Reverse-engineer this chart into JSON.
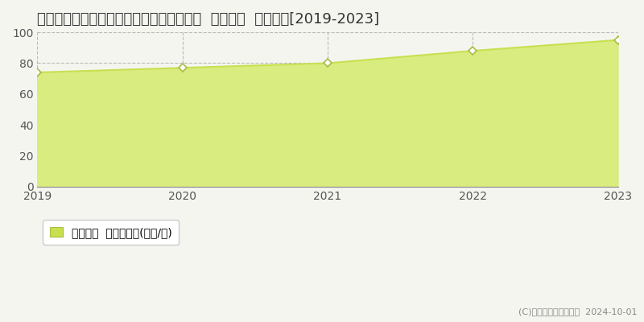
{
  "title": "茨城県つくば市研究学園５丁目１２番４外  基準地価  地価推移[2019-2023]",
  "years": [
    2019,
    2020,
    2021,
    2022,
    2023
  ],
  "values": [
    74.0,
    77.0,
    80.0,
    88.0,
    95.0
  ],
  "line_color": "#c8e050",
  "fill_color": "#d8ec80",
  "marker_color": "#ffffff",
  "marker_edge_color": "#aabb44",
  "ylim": [
    0,
    100
  ],
  "yticks": [
    0,
    20,
    40,
    60,
    80,
    100
  ],
  "grid_color": "#bbbbbb",
  "bg_color": "#f5f5f0",
  "plot_bg_color": "#f5f5f0",
  "legend_label": "基準地価  平均坪単価(万円/坪)",
  "legend_color": "#c8e050",
  "copyright_text": "(C)土地価格ドットコム  2024-10-01",
  "title_fontsize": 13,
  "axis_fontsize": 10,
  "legend_fontsize": 10
}
